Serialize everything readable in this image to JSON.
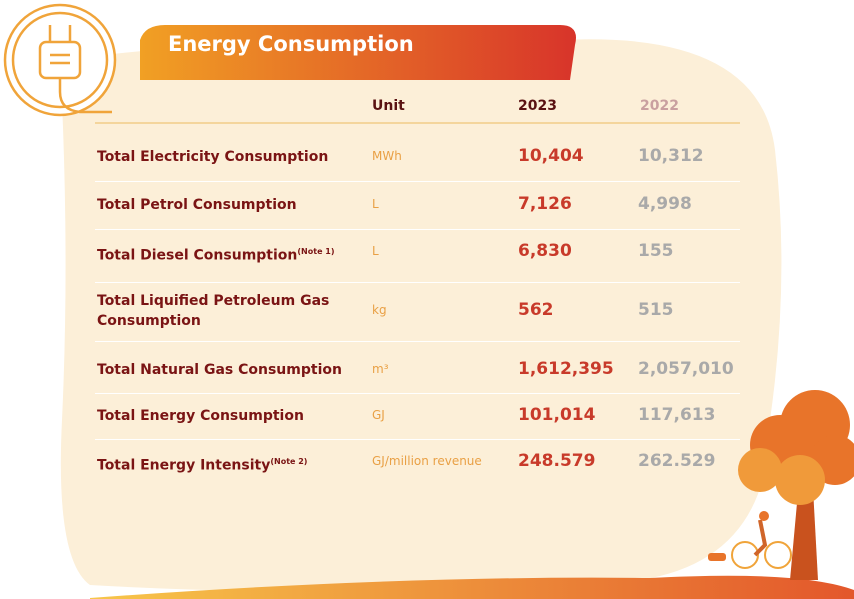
{
  "header": {
    "title": "Energy Consumption"
  },
  "table": {
    "columns": [
      "Unit",
      "2023",
      "2022"
    ],
    "rows": [
      {
        "label": "Total Electricity Consumption",
        "unit": "MWh",
        "v2023": "10,404",
        "v2022": "10,312"
      },
      {
        "label": "Total Petrol Consumption",
        "unit": "L",
        "v2023": "7,126",
        "v2022": "4,998"
      },
      {
        "label": "Total Diesel Consumption",
        "note": "(Note 1)",
        "unit": "L",
        "v2023": "6,830",
        "v2022": "155"
      },
      {
        "label": "Total Liquified Petroleum Gas Consumption",
        "unit": "kg",
        "v2023": "562",
        "v2022": "515"
      },
      {
        "label": "Total Natural Gas Consumption",
        "unit": "m³",
        "v2023": "1,612,395",
        "v2022": "2,057,010"
      },
      {
        "label": "Total Energy Consumption",
        "unit": "GJ",
        "v2023": "101,014",
        "v2022": "117,613"
      },
      {
        "label": "Total Energy Intensity",
        "note": "(Note 2)",
        "unit": "GJ/million revenue",
        "v2023": "248.579",
        "v2022": "262.529"
      }
    ]
  }
}
